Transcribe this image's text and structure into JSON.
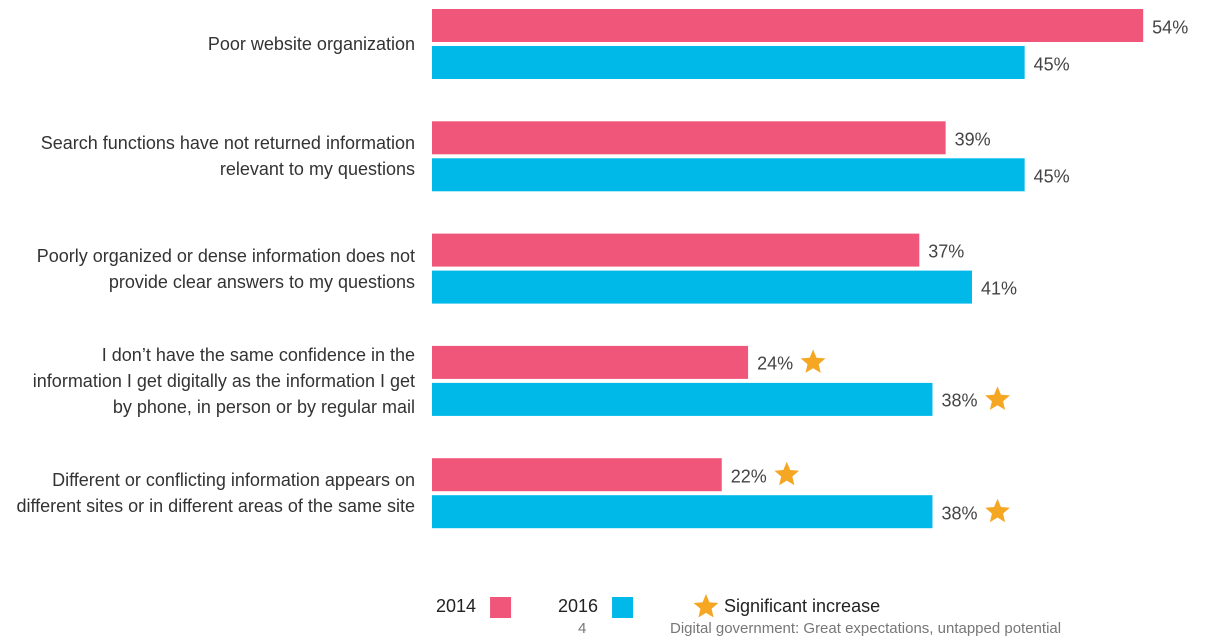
{
  "chart_data": {
    "type": "bar",
    "orientation": "horizontal",
    "categories": [
      "Poor website organization",
      "Search functions have not returned information relevant to my questions",
      "Poorly organized or dense information does not provide clear answers to my questions",
      "I don’t have the same confidence in the information I get digitally as the information I get by phone, in person or by regular mail",
      "Different or conflicting information appears on different sites or in different areas of the same site"
    ],
    "series": [
      {
        "name": "2014",
        "color": "#f0567a",
        "values": [
          54,
          39,
          37,
          24,
          22
        ],
        "value_labels": [
          "54%",
          "39%",
          "37%",
          "24%",
          "22%"
        ],
        "significant": [
          false,
          false,
          false,
          true,
          true
        ]
      },
      {
        "name": "2016",
        "color": "#00b9e8",
        "values": [
          45,
          45,
          41,
          38,
          38
        ],
        "value_labels": [
          "45%",
          "45%",
          "41%",
          "38%",
          "38%"
        ],
        "significant": [
          false,
          false,
          false,
          true,
          true
        ]
      }
    ],
    "significance_label": "Significant increase",
    "significance_color": "#f5a623",
    "page_number": "4",
    "footer": "Digital government: Great expectations, untapped potential"
  }
}
